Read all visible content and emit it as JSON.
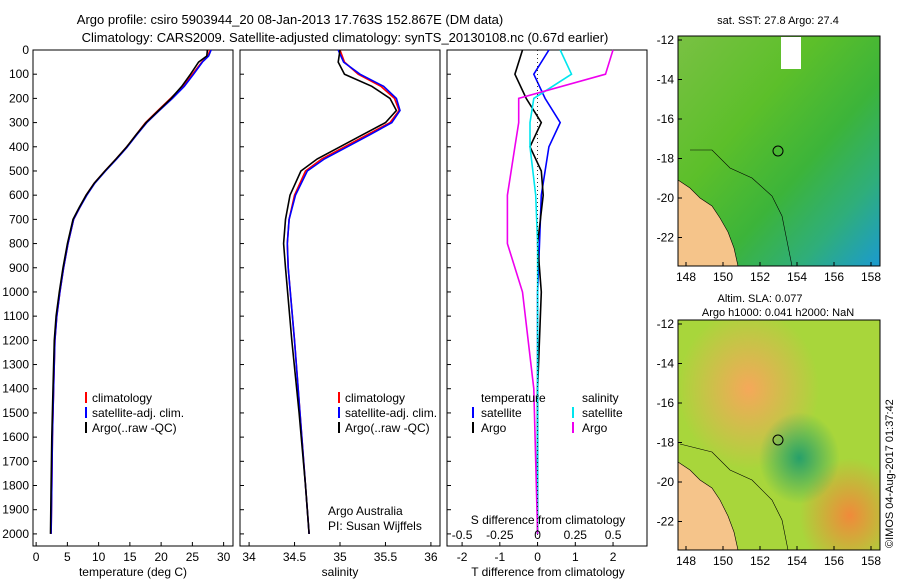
{
  "title_line1": "Argo profile: csiro 5903944_20 08-Jan-2013 17.763S 152.867E (DM data)",
  "title_line2": "Climatology: CARS2009. Satellite-adjusted climatology: synTS_20130108.nc (0.67d earlier)",
  "colors": {
    "climatology": "#ff0000",
    "satellite": "#0000ff",
    "argo": "#000000",
    "s_satellite": "#00e5ee",
    "s_argo": "#ee00ee",
    "land": "#f5c48a"
  },
  "legend_labels": {
    "climatology": "climatology",
    "satellite": "satellite-adj. clim.",
    "argo": "Argo(..raw -QC)"
  },
  "diff_legend": {
    "temperature": "temperature",
    "salinity": "salinity",
    "satellite": "satellite",
    "argo": "Argo"
  },
  "credit": {
    "line1": "Argo Australia",
    "line2": "PI: Susan Wijffels"
  },
  "sst_title": "sat. SST: 27.8  Argo: 27.4",
  "sla_title1": "Altim. SLA: 0.077",
  "sla_title2": "Argo h1000: 0.041  h2000: NaN",
  "timestamp": "©IMOS 04-Aug-2017 01:37:42",
  "chart_data": [
    {
      "type": "line",
      "id": "temperature",
      "xlabel": "temperature (deg C)",
      "xlim": [
        -0.5,
        31.5
      ],
      "ylim": [
        2050,
        0
      ],
      "xticks": [
        0,
        5,
        10,
        15,
        20,
        25,
        30
      ],
      "yticks": [
        0,
        100,
        200,
        300,
        400,
        500,
        600,
        700,
        800,
        900,
        1000,
        1100,
        1200,
        1300,
        1400,
        1500,
        1600,
        1700,
        1800,
        1900,
        2000
      ],
      "series": [
        {
          "name": "climatology",
          "color": "#ff0000",
          "x": [
            27.8,
            27.5,
            26.5,
            25.0,
            23.5,
            21.5,
            19.5,
            17.5,
            16.0,
            14.5,
            12.8,
            11.0,
            9.3,
            8.0,
            7.0,
            6.0,
            5.1,
            4.4,
            3.8,
            3.3,
            3.0,
            2.8,
            2.6,
            2.5,
            2.4
          ],
          "y": [
            0,
            25,
            50,
            100,
            150,
            200,
            250,
            300,
            350,
            400,
            450,
            500,
            550,
            600,
            650,
            700,
            800,
            900,
            1000,
            1100,
            1200,
            1400,
            1600,
            1800,
            2000
          ]
        },
        {
          "name": "satellite-adj. clim.",
          "color": "#0000ff",
          "x": [
            28.0,
            27.6,
            26.6,
            25.2,
            23.7,
            21.8,
            19.7,
            17.7,
            16.1,
            14.6,
            12.9,
            11.1,
            9.4,
            8.1,
            7.0,
            6.0,
            5.1,
            4.4,
            3.8,
            3.3,
            3.0,
            2.8,
            2.6,
            2.5,
            2.4
          ],
          "y": [
            0,
            25,
            50,
            100,
            150,
            200,
            250,
            300,
            350,
            400,
            450,
            500,
            550,
            600,
            650,
            700,
            800,
            900,
            1000,
            1100,
            1200,
            1400,
            1600,
            1800,
            2000
          ]
        },
        {
          "name": "Argo(..raw -QC)",
          "color": "#000000",
          "x": [
            27.4,
            27.3,
            26.0,
            24.7,
            23.3,
            21.6,
            19.6,
            17.6,
            16.0,
            14.5,
            12.8,
            11.0,
            9.3,
            8.0,
            6.9,
            5.9,
            5.0,
            4.3,
            3.7,
            3.2,
            2.9,
            2.7,
            2.5,
            2.4,
            2.3
          ],
          "y": [
            0,
            25,
            50,
            100,
            150,
            200,
            250,
            300,
            350,
            400,
            450,
            500,
            550,
            600,
            650,
            700,
            800,
            900,
            1000,
            1100,
            1200,
            1400,
            1600,
            1800,
            2000
          ]
        }
      ]
    },
    {
      "type": "line",
      "id": "salinity",
      "xlabel": "salinity",
      "xlim": [
        33.9,
        36.1
      ],
      "ylim": [
        2050,
        0
      ],
      "xticks": [
        34,
        34.5,
        35,
        35.5,
        36
      ],
      "series": [
        {
          "name": "climatology",
          "color": "#ff0000",
          "x": [
            35.0,
            35.05,
            35.2,
            35.45,
            35.6,
            35.65,
            35.55,
            35.3,
            35.05,
            34.8,
            34.62,
            34.5,
            34.44,
            34.42,
            34.43,
            34.5,
            34.56,
            34.62,
            34.66
          ],
          "y": [
            0,
            50,
            100,
            150,
            200,
            250,
            300,
            350,
            400,
            450,
            500,
            600,
            700,
            800,
            900,
            1200,
            1500,
            1800,
            2000
          ]
        },
        {
          "name": "satellite-adj. clim.",
          "color": "#0000ff",
          "x": [
            34.98,
            35.04,
            35.22,
            35.48,
            35.62,
            35.66,
            35.57,
            35.33,
            35.08,
            34.83,
            34.64,
            34.51,
            34.44,
            34.42,
            34.43,
            34.5,
            34.56,
            34.62,
            34.66
          ],
          "y": [
            0,
            50,
            100,
            150,
            200,
            250,
            300,
            350,
            400,
            450,
            500,
            600,
            700,
            800,
            900,
            1200,
            1500,
            1800,
            2000
          ]
        },
        {
          "name": "Argo(..raw -QC)",
          "color": "#000000",
          "x": [
            35.0,
            34.98,
            35.05,
            35.35,
            35.55,
            35.62,
            35.5,
            35.25,
            35.0,
            34.75,
            34.57,
            34.45,
            34.4,
            34.38,
            34.4,
            34.47,
            34.55,
            34.62,
            34.66
          ],
          "y": [
            0,
            50,
            100,
            150,
            200,
            250,
            300,
            350,
            400,
            450,
            500,
            600,
            700,
            800,
            900,
            1200,
            1500,
            1800,
            2000
          ]
        }
      ]
    },
    {
      "type": "line",
      "id": "differences",
      "xlabel": "T difference from climatology",
      "x2label": "S difference from climatology",
      "xlim": [
        -2.4,
        2.9
      ],
      "ylim": [
        2050,
        0
      ],
      "xticks": [
        -2,
        -1,
        0,
        1,
        2
      ],
      "x2ticks": [
        "-0.5",
        "-0.25",
        "0",
        "0.25",
        "0.5"
      ],
      "series": [
        {
          "name": "T satellite",
          "color": "#0000ff",
          "x": [
            0.3,
            -0.1,
            0.2,
            0.6,
            0.3,
            0.2,
            0.1,
            0.05,
            0.0,
            0.0,
            0.0,
            0.0
          ],
          "y": [
            0,
            100,
            200,
            300,
            400,
            500,
            600,
            800,
            1000,
            1400,
            1800,
            2000
          ]
        },
        {
          "name": "T Argo",
          "color": "#000000",
          "x": [
            -0.4,
            -0.6,
            -0.3,
            0.1,
            -0.2,
            0.1,
            0.15,
            0.0,
            0.1,
            0.0,
            0.0,
            0.0
          ],
          "y": [
            0,
            100,
            200,
            300,
            400,
            500,
            600,
            800,
            1000,
            1400,
            1800,
            2000
          ]
        },
        {
          "name": "S satellite",
          "color": "#00e5ee",
          "x": [
            0.6,
            0.9,
            -0.1,
            -0.2,
            -0.2,
            -0.05,
            0.0,
            0.0,
            0.0,
            0.0
          ],
          "y": [
            0,
            100,
            200,
            300,
            400,
            600,
            800,
            1000,
            1400,
            2000
          ]
        },
        {
          "name": "S Argo",
          "color": "#ee00ee",
          "x": [
            2.0,
            1.8,
            -0.5,
            -0.5,
            -0.6,
            -0.8,
            -0.8,
            -0.4,
            -0.1,
            0.0
          ],
          "y": [
            0,
            100,
            200,
            300,
            400,
            600,
            800,
            1000,
            1400,
            2000
          ]
        }
      ]
    }
  ],
  "map": {
    "xticks": [
      "148",
      "150",
      "152",
      "154",
      "156",
      "158"
    ],
    "yticks": [
      "-12",
      "-14",
      "-16",
      "-18",
      "-20",
      "-22"
    ]
  }
}
